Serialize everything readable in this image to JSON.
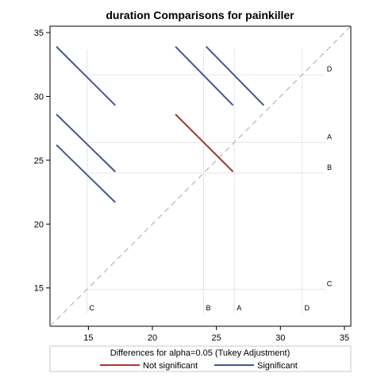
{
  "chart_data": {
    "type": "diffogram",
    "title": "duration Comparisons for painkiller",
    "xlim": [
      12,
      35.5
    ],
    "ylim": [
      12,
      35.5
    ],
    "x_ticks": [
      15,
      20,
      25,
      30,
      35
    ],
    "y_ticks": [
      15,
      20,
      25,
      30,
      35
    ],
    "diagonal": "dashed reference line y = x",
    "group_means": [
      {
        "group": "C",
        "mean": 14.9
      },
      {
        "group": "B",
        "mean": 24.0
      },
      {
        "group": "A",
        "mean": 26.4
      },
      {
        "group": "D",
        "mean": 31.7
      }
    ],
    "segments": [
      {
        "x1": 12.5,
        "y1": 33.9,
        "x2": 17.1,
        "y2": 29.3,
        "significant": true
      },
      {
        "x1": 12.5,
        "y1": 28.6,
        "x2": 17.1,
        "y2": 24.1,
        "significant": true
      },
      {
        "x1": 12.5,
        "y1": 26.2,
        "x2": 17.1,
        "y2": 21.7,
        "significant": true
      },
      {
        "x1": 21.8,
        "y1": 33.9,
        "x2": 26.3,
        "y2": 29.3,
        "significant": true
      },
      {
        "x1": 24.2,
        "y1": 33.9,
        "x2": 28.7,
        "y2": 29.3,
        "significant": true
      },
      {
        "x1": 21.8,
        "y1": 28.6,
        "x2": 26.3,
        "y2": 24.1,
        "significant": false
      }
    ],
    "legend": {
      "title": "Differences for alpha=0.05 (Tukey Adjustment)",
      "entries": [
        {
          "label": "Not significant",
          "color": "#a23a2e"
        },
        {
          "label": "Significant",
          "color": "#445694"
        }
      ],
      "placement": "bottom"
    },
    "colors": {
      "not_significant": "#a23a2e",
      "significant": "#445694",
      "reference_line": "#a9a9a9",
      "grid": "#e6e6e6"
    }
  }
}
